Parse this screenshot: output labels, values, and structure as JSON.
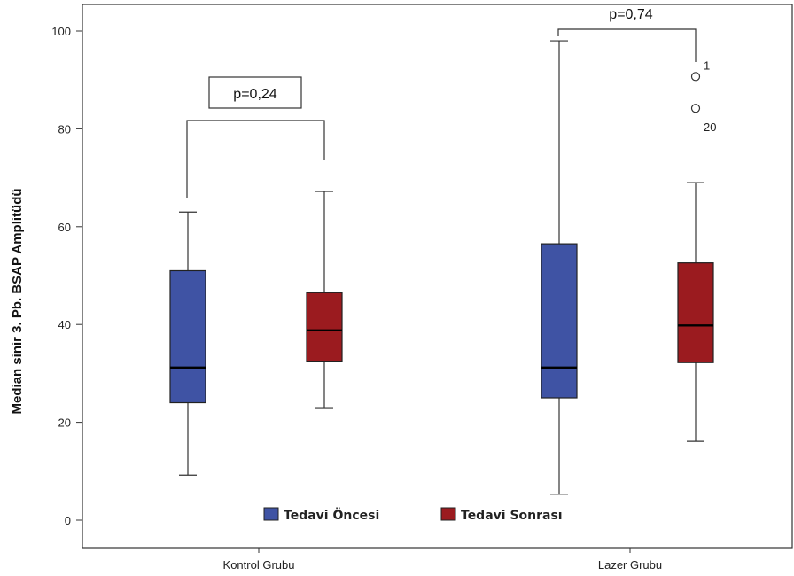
{
  "chart_data": {
    "type": "boxplot",
    "ylabel": "Median sinir 3. Pb. BSAP Amplitüdü",
    "xlabel": "",
    "ylim": [
      0,
      100
    ],
    "yticks": [
      0,
      20,
      40,
      60,
      80,
      100
    ],
    "grid": false,
    "legend_placement": "bottom-center",
    "categories": [
      "Kontrol Grubu",
      "Lazer Grubu"
    ],
    "series": [
      {
        "name": "Tedavi Öncesi",
        "color": "#3f53a4",
        "boxes": [
          {
            "min": 9.2,
            "q1": 24,
            "median": 31.2,
            "q3": 51,
            "max": 63
          },
          {
            "min": 5.3,
            "q1": 25,
            "median": 31.2,
            "q3": 56.5,
            "max": 98
          }
        ]
      },
      {
        "name": "Tedavi Sonrası",
        "color": "#9b1b1f",
        "boxes": [
          {
            "min": 23,
            "q1": 32.5,
            "median": 38.8,
            "q3": 46.5,
            "max": 67.2
          },
          {
            "min": 16.1,
            "q1": 32.2,
            "median": 39.8,
            "q3": 52.6,
            "max": 69,
            "outliers": [
              {
                "value": 90.7,
                "label": "1"
              },
              {
                "value": 84.2,
                "label": "20"
              }
            ]
          }
        ]
      }
    ],
    "annotations": [
      {
        "text": "p=0,24",
        "group": "Kontrol Grubu",
        "boxed": true
      },
      {
        "text": "p=0,74",
        "group": "Lazer Grubu",
        "boxed": false
      }
    ]
  }
}
